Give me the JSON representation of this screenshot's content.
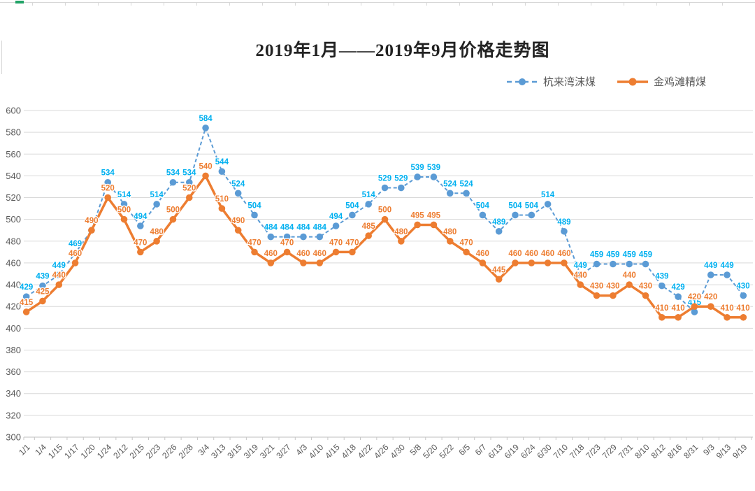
{
  "chart": {
    "title": "2019年1月——2019年9月价格走势图"
  },
  "chart_data": {
    "type": "line",
    "title": "2019年1月——2019年9月价格走势图",
    "categories": [
      "1/1",
      "1/4",
      "1/15",
      "1/17",
      "1/20",
      "1/24",
      "2/12",
      "2/15",
      "2/23",
      "2/26",
      "2/28",
      "3/4",
      "3/13",
      "3/15",
      "3/19",
      "3/21",
      "3/27",
      "4/3",
      "4/10",
      "4/15",
      "4/18",
      "4/22",
      "4/26",
      "4/30",
      "5/8",
      "5/20",
      "5/22",
      "6/5",
      "6/7",
      "6/13",
      "6/19",
      "6/24",
      "6/30",
      "7/10",
      "7/18",
      "7/23",
      "7/29",
      "7/31",
      "8/10",
      "8/12",
      "8/16",
      "8/31",
      "9/3",
      "9/13",
      "9/19"
    ],
    "series": [
      {
        "name": "杭来湾沫煤",
        "line_style": "dashed",
        "color": "#5B9BD5",
        "label_color": "#00B0F0",
        "values": [
          429,
          439,
          449,
          469,
          490,
          534,
          514,
          494,
          514,
          534,
          534,
          584,
          544,
          524,
          504,
          484,
          484,
          484,
          484,
          494,
          504,
          514,
          529,
          529,
          539,
          539,
          524,
          524,
          504,
          489,
          504,
          504,
          514,
          489,
          449,
          459,
          459,
          459,
          459,
          439,
          429,
          415,
          449,
          449,
          430
        ]
      },
      {
        "name": "金鸡滩精煤",
        "line_style": "solid",
        "color": "#ED7D31",
        "label_color": "#ED7D31",
        "values": [
          415,
          425,
          440,
          460,
          490,
          520,
          500,
          470,
          480,
          500,
          520,
          540,
          510,
          490,
          470,
          460,
          470,
          460,
          460,
          470,
          470,
          485,
          500,
          480,
          495,
          495,
          480,
          470,
          460,
          445,
          460,
          460,
          460,
          460,
          440,
          430,
          430,
          440,
          430,
          410,
          410,
          420,
          420,
          410,
          410
        ]
      }
    ],
    "ylim": [
      300,
      600
    ],
    "y_tick_step": 20,
    "grid": true,
    "data_labels": true,
    "legend_position": "top-right",
    "xlabel": "",
    "ylabel": "",
    "axis_text_color": "#595959",
    "gridline_color": "#D9D9D9"
  }
}
